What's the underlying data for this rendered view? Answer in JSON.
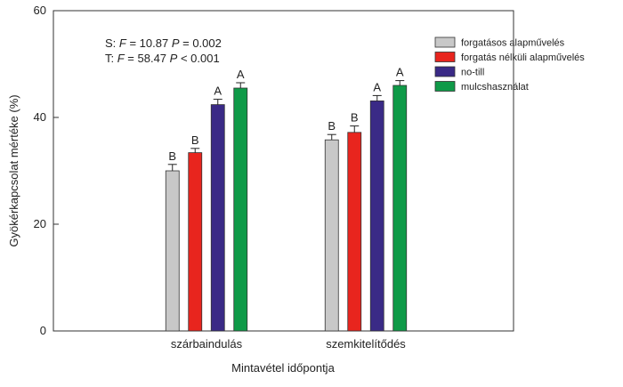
{
  "chart_data": {
    "type": "bar",
    "xlabel": "Mintavétel időpontja",
    "ylabel": "Gyökérkapcsolat mértéke (%)",
    "ylim": [
      0,
      60
    ],
    "yticks": [
      "0",
      "20",
      "40",
      "60"
    ],
    "categories": [
      "szárbaindulás",
      "szemkitelítődés"
    ],
    "series": [
      {
        "name": "forgatásos alapművelés",
        "color": "#c8c8c8",
        "values": [
          30,
          35.8
        ],
        "errors": [
          1.2,
          1.0
        ],
        "sig": [
          "B",
          "B"
        ]
      },
      {
        "name": "forgatás nélküli alapművelés",
        "color": "#e8251e",
        "values": [
          33.4,
          37.2
        ],
        "errors": [
          0.8,
          1.2
        ],
        "sig": [
          "B",
          "B"
        ]
      },
      {
        "name": "no-till",
        "color": "#3a2a86",
        "values": [
          42.4,
          43.1
        ],
        "errors": [
          1.0,
          1.0
        ],
        "sig": [
          "A",
          "A"
        ]
      },
      {
        "name": "mulcshasználat",
        "color": "#0f9a48",
        "values": [
          45.5,
          46.0
        ],
        "errors": [
          1.0,
          0.9
        ],
        "sig": [
          "A",
          "A"
        ]
      }
    ],
    "annotations": [
      {
        "prefix": "S: ",
        "fname": "F",
        "fval": " = 10.87  ",
        "pname": "P",
        "pval": " = 0.002"
      },
      {
        "prefix": "T: ",
        "fname": "F",
        "fval": " = 58.47  ",
        "pname": "P",
        "pval": " < 0.001"
      }
    ],
    "legend_position": "top-right",
    "grid": false
  }
}
